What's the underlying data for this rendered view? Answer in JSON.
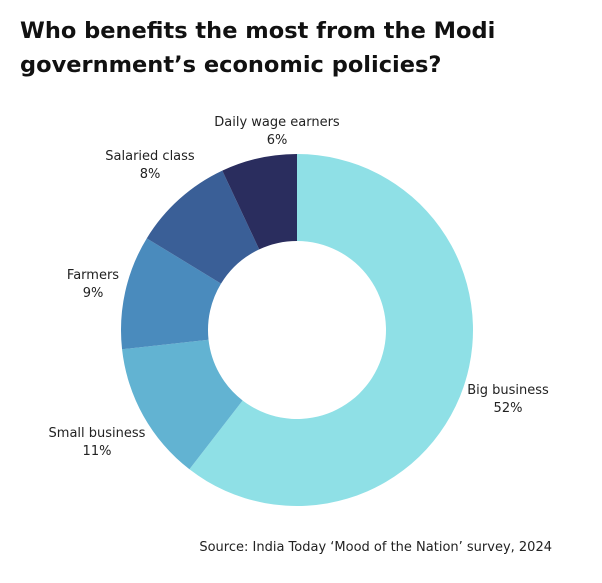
{
  "title_lines": [
    "Who benefits the most from the Modi",
    "government’s economic policies?"
  ],
  "source": "Source: India Today ‘Mood of the Nation’ survey, 2024",
  "chart_data": {
    "type": "pie",
    "donut": true,
    "title": "Who benefits the most from the Modi government’s economic policies?",
    "slices": [
      {
        "label": "Big business",
        "value": 52,
        "display": "52%",
        "color": "#8fe0e6"
      },
      {
        "label": "Small business",
        "value": 11,
        "display": "11%",
        "color": "#62b3d2"
      },
      {
        "label": "Farmers",
        "value": 9,
        "display": "9%",
        "color": "#4a8bbd"
      },
      {
        "label": "Salaried class",
        "value": 8,
        "display": "8%",
        "color": "#3a5f97"
      },
      {
        "label": "Daily wage earners",
        "value": 6,
        "display": "6%",
        "color": "#2a2d5e"
      }
    ]
  }
}
